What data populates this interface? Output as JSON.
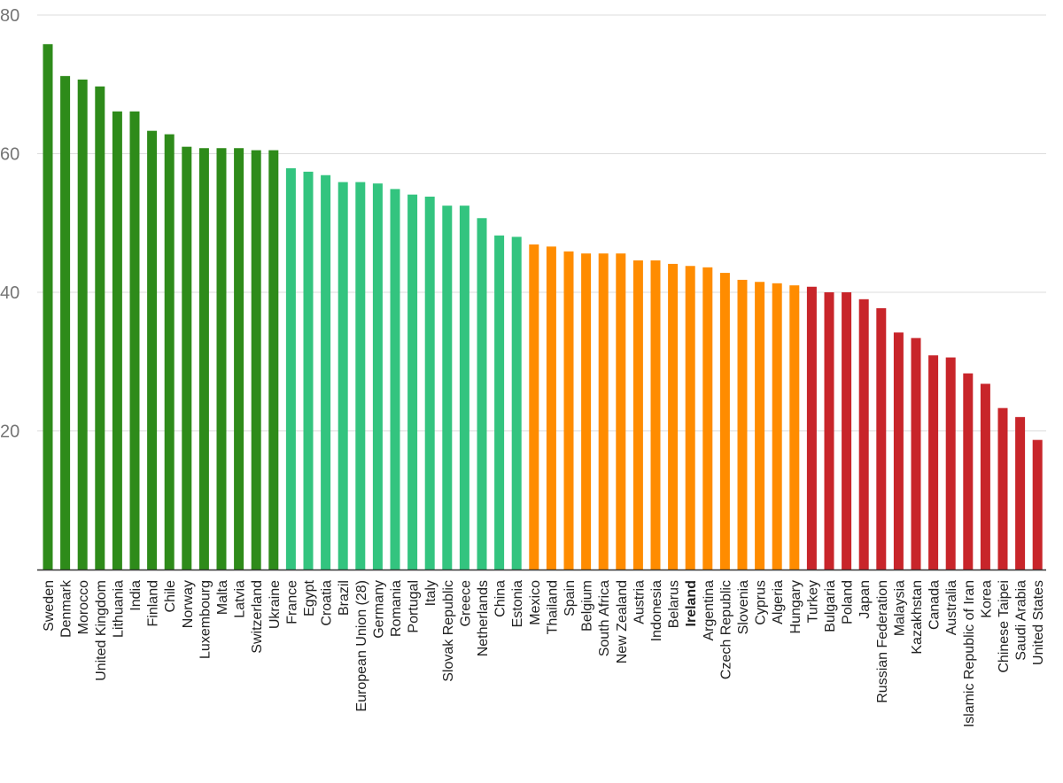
{
  "chart_data": {
    "type": "bar",
    "ylim": [
      0,
      80
    ],
    "yticks": [
      20,
      40,
      60,
      80
    ],
    "grid": true,
    "highlight": "Ireland",
    "colors": {
      "group1": "#2e8b1a",
      "group2": "#33c47f",
      "group3": "#ff8c00",
      "group4": "#c8252a",
      "gridline": "#dddddd",
      "axis": "#333333"
    },
    "categories": [
      "Sweden",
      "Denmark",
      "Morocco",
      "United Kingdom",
      "Lithuania",
      "India",
      "Finland",
      "Chile",
      "Norway",
      "Luxembourg",
      "Malta",
      "Latvia",
      "Switzerland",
      "Ukraine",
      "France",
      "Egypt",
      "Croatia",
      "Brazil",
      "European Union (28)",
      "Germany",
      "Romania",
      "Portugal",
      "Italy",
      "Slovak Republic",
      "Greece",
      "Netherlands",
      "China",
      "Estonia",
      "Mexico",
      "Thailand",
      "Spain",
      "Belgium",
      "South Africa",
      "New Zealand",
      "Austria",
      "Indonesia",
      "Belarus",
      "Ireland",
      "Argentina",
      "Czech Republic",
      "Slovenia",
      "Cyprus",
      "Algeria",
      "Hungary",
      "Turkey",
      "Bulgaria",
      "Poland",
      "Japan",
      "Russian Federation",
      "Malaysia",
      "Kazakhstan",
      "Canada",
      "Australia",
      "Islamic Republic of Iran",
      "Korea",
      "Chinese Taipei",
      "Saudi Arabia",
      "United States"
    ],
    "values": [
      75.8,
      71.2,
      70.7,
      69.7,
      66.1,
      66.1,
      63.3,
      62.8,
      61.0,
      60.8,
      60.8,
      60.8,
      60.5,
      60.5,
      57.9,
      57.4,
      56.9,
      55.9,
      55.9,
      55.7,
      54.9,
      54.1,
      53.8,
      52.5,
      52.5,
      50.7,
      48.2,
      48.0,
      46.9,
      46.6,
      45.9,
      45.6,
      45.6,
      45.6,
      44.6,
      44.6,
      44.1,
      43.8,
      43.6,
      42.8,
      41.8,
      41.5,
      41.3,
      41.0,
      40.8,
      40.0,
      40.0,
      39.0,
      37.7,
      34.2,
      33.4,
      30.9,
      30.6,
      28.3,
      26.8,
      23.3,
      22.0,
      18.7
    ],
    "groups": [
      1,
      1,
      1,
      1,
      1,
      1,
      1,
      1,
      1,
      1,
      1,
      1,
      1,
      1,
      2,
      2,
      2,
      2,
      2,
      2,
      2,
      2,
      2,
      2,
      2,
      2,
      2,
      2,
      3,
      3,
      3,
      3,
      3,
      3,
      3,
      3,
      3,
      3,
      3,
      3,
      3,
      3,
      3,
      3,
      4,
      4,
      4,
      4,
      4,
      4,
      4,
      4,
      4,
      4,
      4,
      4,
      4,
      4
    ]
  }
}
